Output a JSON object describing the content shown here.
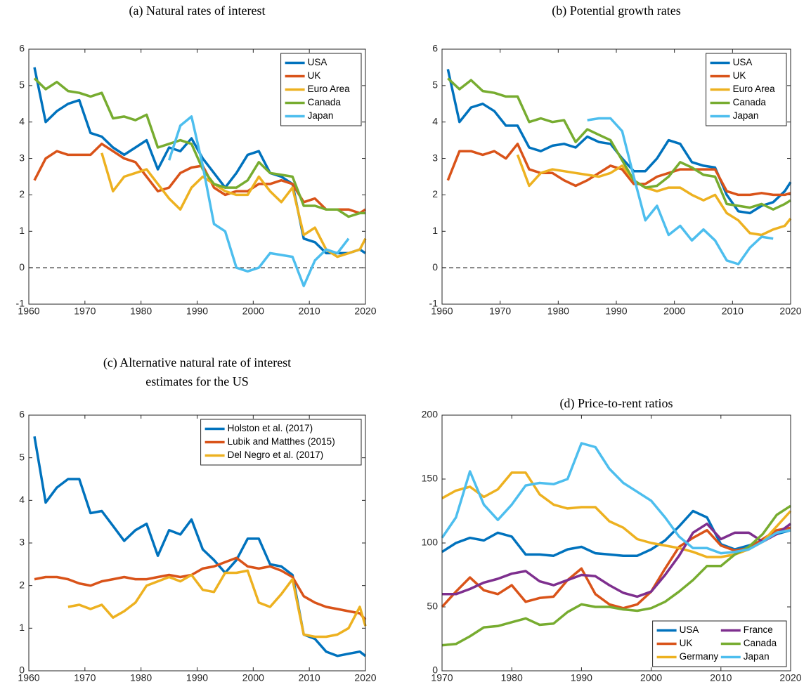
{
  "chart_data": [
    {
      "type": "line",
      "title": "(a) Natural rates of interest",
      "x": [
        1961,
        1963,
        1965,
        1967,
        1969,
        1971,
        1973,
        1975,
        1977,
        1979,
        1981,
        1983,
        1985,
        1987,
        1989,
        1991,
        1993,
        1995,
        1997,
        1999,
        2001,
        2003,
        2005,
        2007,
        2009,
        2011,
        2013,
        2015,
        2017,
        2019,
        2020
      ],
      "xlim": [
        1960,
        2020
      ],
      "xticks": [
        1960,
        1970,
        1980,
        1990,
        2000,
        2010,
        2020
      ],
      "ylim": [
        -1,
        6
      ],
      "yticks": [
        -1,
        0,
        1,
        2,
        3,
        4,
        5,
        6
      ],
      "reference_line": 0,
      "legend": "upper right",
      "series": [
        {
          "name": "USA",
          "color": "#0072BD",
          "values": [
            5.5,
            4.0,
            4.3,
            4.5,
            4.6,
            3.7,
            3.6,
            3.3,
            3.1,
            3.3,
            3.5,
            2.7,
            3.3,
            3.2,
            3.55,
            3.0,
            2.6,
            2.2,
            2.6,
            3.1,
            3.2,
            2.6,
            2.5,
            2.3,
            0.8,
            0.7,
            0.4,
            0.4,
            0.4,
            0.5,
            0.4
          ]
        },
        {
          "name": "UK",
          "color": "#D95319",
          "values": [
            2.4,
            3.0,
            3.2,
            3.1,
            3.1,
            3.1,
            3.4,
            3.2,
            3.0,
            2.9,
            2.5,
            2.1,
            2.2,
            2.6,
            2.75,
            2.8,
            2.2,
            2.0,
            2.1,
            2.1,
            2.3,
            2.3,
            2.4,
            2.3,
            1.8,
            1.9,
            1.6,
            1.6,
            1.6,
            1.5,
            1.6
          ]
        },
        {
          "name": "Euro Area",
          "color": "#EDB120",
          "values": [
            null,
            null,
            null,
            null,
            null,
            null,
            3.15,
            2.1,
            2.5,
            2.6,
            2.7,
            2.3,
            1.9,
            1.6,
            2.2,
            2.5,
            2.3,
            2.1,
            2.0,
            2.0,
            2.5,
            2.1,
            1.8,
            2.2,
            0.9,
            1.1,
            0.5,
            0.3,
            0.4,
            0.5,
            0.8
          ]
        },
        {
          "name": "Canada",
          "color": "#77AC30",
          "values": [
            5.2,
            4.9,
            5.1,
            4.85,
            4.8,
            4.7,
            4.8,
            4.1,
            4.15,
            4.05,
            4.2,
            3.3,
            3.4,
            3.5,
            3.4,
            2.7,
            2.3,
            2.2,
            2.2,
            2.4,
            2.9,
            2.6,
            2.55,
            2.5,
            1.7,
            1.7,
            1.6,
            1.6,
            1.4,
            1.5,
            1.5
          ]
        },
        {
          "name": "Japan",
          "color": "#4DBEEE",
          "values": [
            null,
            null,
            null,
            null,
            null,
            null,
            null,
            null,
            null,
            null,
            null,
            null,
            2.95,
            3.9,
            4.15,
            2.8,
            1.2,
            1.0,
            0.0,
            -0.1,
            0.0,
            0.4,
            0.35,
            0.3,
            -0.5,
            0.2,
            0.5,
            0.4,
            0.8,
            null,
            null
          ]
        }
      ]
    },
    {
      "type": "line",
      "title": "(b) Potential growth rates",
      "x": [
        1961,
        1963,
        1965,
        1967,
        1969,
        1971,
        1973,
        1975,
        1977,
        1979,
        1981,
        1983,
        1985,
        1987,
        1989,
        1991,
        1993,
        1995,
        1997,
        1999,
        2001,
        2003,
        2005,
        2007,
        2009,
        2011,
        2013,
        2015,
        2017,
        2019,
        2020
      ],
      "xlim": [
        1960,
        2020
      ],
      "xticks": [
        1960,
        1970,
        1980,
        1990,
        2000,
        2010,
        2020
      ],
      "ylim": [
        -1,
        6
      ],
      "yticks": [
        -1,
        0,
        1,
        2,
        3,
        4,
        5,
        6
      ],
      "reference_line": 0,
      "legend": "upper right",
      "series": [
        {
          "name": "USA",
          "color": "#0072BD",
          "values": [
            5.45,
            4.0,
            4.4,
            4.5,
            4.3,
            3.9,
            3.9,
            3.3,
            3.2,
            3.35,
            3.4,
            3.3,
            3.6,
            3.45,
            3.4,
            3.0,
            2.65,
            2.65,
            3.0,
            3.5,
            3.4,
            2.9,
            2.8,
            2.75,
            2.0,
            1.55,
            1.5,
            1.7,
            1.8,
            2.1,
            2.35
          ]
        },
        {
          "name": "UK",
          "color": "#D95319",
          "values": [
            2.4,
            3.2,
            3.2,
            3.1,
            3.2,
            3.0,
            3.4,
            2.7,
            2.6,
            2.6,
            2.4,
            2.25,
            2.4,
            2.6,
            2.8,
            2.7,
            2.3,
            2.3,
            2.5,
            2.6,
            2.7,
            2.7,
            2.7,
            2.7,
            2.1,
            2.0,
            2.0,
            2.05,
            2.0,
            2.0,
            2.05
          ]
        },
        {
          "name": "Euro Area",
          "color": "#EDB120",
          "values": [
            null,
            null,
            null,
            null,
            null,
            null,
            3.1,
            2.25,
            2.6,
            2.7,
            2.65,
            2.6,
            2.55,
            2.5,
            2.6,
            2.8,
            2.4,
            2.2,
            2.1,
            2.2,
            2.2,
            2.0,
            1.85,
            2.0,
            1.5,
            1.3,
            0.95,
            0.9,
            1.05,
            1.15,
            1.35
          ]
        },
        {
          "name": "Canada",
          "color": "#77AC30",
          "values": [
            5.2,
            4.9,
            5.15,
            4.85,
            4.8,
            4.7,
            4.7,
            4.0,
            4.1,
            4.0,
            4.05,
            3.45,
            3.8,
            3.65,
            3.5,
            2.95,
            2.4,
            2.2,
            2.25,
            2.5,
            2.9,
            2.75,
            2.55,
            2.5,
            1.75,
            1.7,
            1.65,
            1.75,
            1.6,
            1.75,
            1.85
          ]
        },
        {
          "name": "Japan",
          "color": "#4DBEEE",
          "values": [
            null,
            null,
            null,
            null,
            null,
            null,
            null,
            null,
            null,
            null,
            null,
            null,
            4.05,
            4.1,
            4.1,
            3.75,
            2.5,
            1.3,
            1.7,
            0.9,
            1.15,
            0.75,
            1.05,
            0.75,
            0.2,
            0.1,
            0.55,
            0.85,
            0.8,
            null,
            null
          ]
        }
      ]
    },
    {
      "type": "line",
      "title": [
        "(c) Alternative natural rate of interest",
        "estimates for the US"
      ],
      "x": [
        1961,
        1963,
        1965,
        1967,
        1969,
        1971,
        1973,
        1975,
        1977,
        1979,
        1981,
        1983,
        1985,
        1987,
        1989,
        1991,
        1993,
        1995,
        1997,
        1999,
        2001,
        2003,
        2005,
        2007,
        2009,
        2011,
        2013,
        2015,
        2017,
        2019,
        2020
      ],
      "xlim": [
        1960,
        2020
      ],
      "xticks": [
        1960,
        1970,
        1980,
        1990,
        2000,
        2010,
        2020
      ],
      "ylim": [
        0,
        6
      ],
      "yticks": [
        0,
        1,
        2,
        3,
        4,
        5,
        6
      ],
      "legend": "upper right",
      "series": [
        {
          "name": "Holston et al. (2017)",
          "color": "#0072BD",
          "values": [
            5.5,
            3.95,
            4.3,
            4.5,
            4.5,
            3.7,
            3.75,
            3.4,
            3.05,
            3.3,
            3.45,
            2.7,
            3.3,
            3.2,
            3.55,
            2.85,
            2.6,
            2.3,
            2.6,
            3.1,
            3.1,
            2.5,
            2.45,
            2.25,
            0.85,
            0.75,
            0.45,
            0.35,
            0.4,
            0.45,
            0.35
          ]
        },
        {
          "name": "Lubik and Matthes (2015)",
          "color": "#D95319",
          "values": [
            2.15,
            2.2,
            2.2,
            2.15,
            2.05,
            2.0,
            2.1,
            2.15,
            2.2,
            2.15,
            2.15,
            2.2,
            2.25,
            2.2,
            2.25,
            2.4,
            2.45,
            2.55,
            2.65,
            2.45,
            2.4,
            2.45,
            2.35,
            2.2,
            1.75,
            1.6,
            1.5,
            1.45,
            1.4,
            1.35,
            1.2
          ]
        },
        {
          "name": "Del Negro et al. (2017)",
          "color": "#EDB120",
          "values": [
            null,
            null,
            null,
            1.5,
            1.55,
            1.45,
            1.55,
            1.25,
            1.4,
            1.6,
            2.0,
            2.1,
            2.2,
            2.1,
            2.25,
            1.9,
            1.85,
            2.3,
            2.3,
            2.35,
            1.6,
            1.5,
            1.8,
            2.15,
            0.85,
            0.8,
            0.8,
            0.85,
            1.0,
            1.5,
            1.05
          ]
        }
      ]
    },
    {
      "type": "line",
      "title": "(d) Price-to-rent ratios",
      "x": [
        1970,
        1972,
        1974,
        1976,
        1978,
        1980,
        1982,
        1984,
        1986,
        1988,
        1990,
        1992,
        1994,
        1996,
        1998,
        2000,
        2002,
        2004,
        2006,
        2008,
        2010,
        2012,
        2014,
        2016,
        2018,
        2020
      ],
      "xlim": [
        1970,
        2020
      ],
      "xticks": [
        1970,
        1980,
        1990,
        2000,
        2010,
        2020
      ],
      "ylim": [
        0,
        200
      ],
      "yticks": [
        0,
        50,
        100,
        150,
        200
      ],
      "legend": "lower right",
      "legend_columns": 2,
      "series": [
        {
          "name": "USA",
          "color": "#0072BD",
          "values": [
            93,
            100,
            104,
            102,
            108,
            105,
            91,
            91,
            90,
            95,
            97,
            92,
            91,
            90,
            90,
            95,
            102,
            113,
            125,
            120,
            99,
            95,
            98,
            102,
            107,
            110
          ]
        },
        {
          "name": "UK",
          "color": "#D95319",
          "values": [
            50,
            62,
            73,
            63,
            60,
            67,
            54,
            57,
            58,
            71,
            80,
            60,
            52,
            49,
            52,
            62,
            80,
            97,
            104,
            110,
            98,
            94,
            96,
            103,
            110,
            112
          ]
        },
        {
          "name": "Germany",
          "color": "#EDB120",
          "values": [
            135,
            141,
            144,
            136,
            142,
            155,
            155,
            138,
            130,
            127,
            128,
            128,
            117,
            112,
            103,
            100,
            98,
            96,
            93,
            89,
            89,
            91,
            95,
            101,
            113,
            125
          ]
        },
        {
          "name": "France",
          "color": "#7E2F8E",
          "values": [
            60,
            60,
            64,
            69,
            72,
            76,
            78,
            70,
            67,
            71,
            75,
            74,
            67,
            61,
            58,
            62,
            75,
            90,
            108,
            115,
            103,
            108,
            108,
            101,
            107,
            115
          ]
        },
        {
          "name": "Canada",
          "color": "#77AC30",
          "values": [
            20,
            21,
            27,
            34,
            35,
            38,
            41,
            36,
            37,
            46,
            52,
            50,
            50,
            48,
            47,
            49,
            54,
            62,
            71,
            82,
            82,
            91,
            97,
            107,
            122,
            129
          ]
        },
        {
          "name": "Japan",
          "color": "#4DBEEE",
          "values": [
            104,
            120,
            156,
            130,
            118,
            130,
            145,
            147,
            146,
            150,
            178,
            175,
            158,
            147,
            140,
            133,
            120,
            105,
            96,
            96,
            92,
            93,
            95,
            101,
            108,
            110
          ]
        }
      ]
    }
  ]
}
